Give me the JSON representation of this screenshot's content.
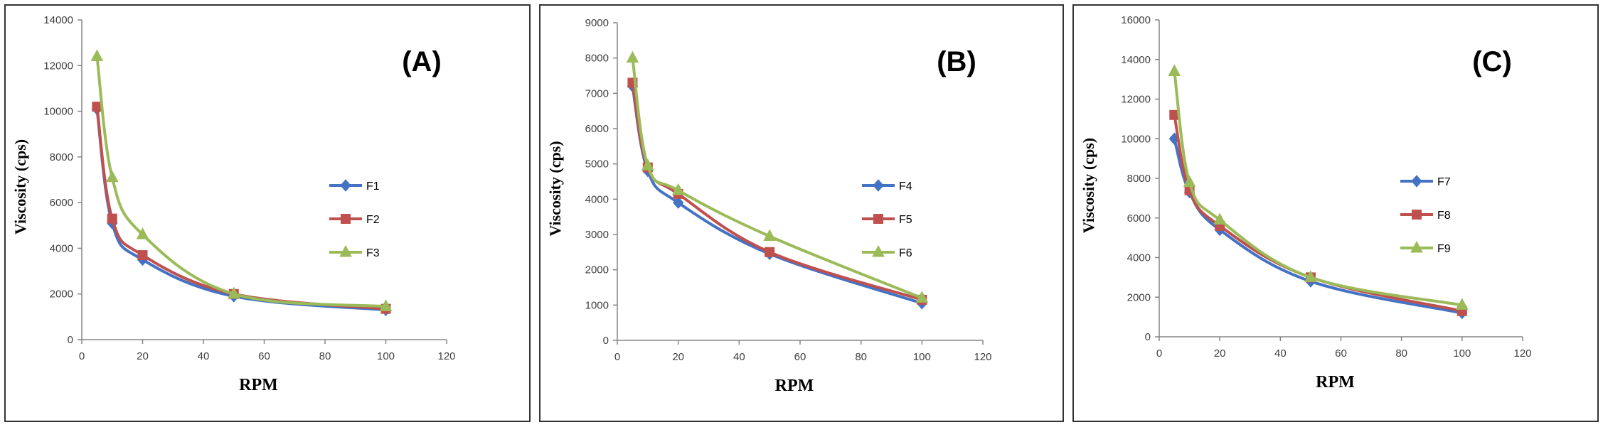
{
  "chart_data": [
    {
      "type": "line",
      "panel_label": "(A)",
      "xlabel": "RPM",
      "ylabel": "Viscosity (cps)",
      "x": [
        5,
        10,
        20,
        50,
        100
      ],
      "xlim": [
        0,
        120
      ],
      "ylim": [
        0,
        14000
      ],
      "xticks": [
        0,
        20,
        40,
        60,
        80,
        100,
        120
      ],
      "yticks": [
        0,
        2000,
        4000,
        6000,
        8000,
        10000,
        12000,
        14000
      ],
      "grid": false,
      "legend_position": "right",
      "series": [
        {
          "name": "F1",
          "color": "#4472C4",
          "marker": "diamond",
          "values": [
            10100,
            5100,
            3500,
            1900,
            1300
          ]
        },
        {
          "name": "F2",
          "color": "#C0504D",
          "marker": "square",
          "values": [
            10200,
            5300,
            3700,
            2000,
            1350
          ]
        },
        {
          "name": "F3",
          "color": "#9BBB59",
          "marker": "triangle",
          "values": [
            12400,
            7100,
            4600,
            2000,
            1450
          ]
        }
      ]
    },
    {
      "type": "line",
      "panel_label": "(B)",
      "xlabel": "RPM",
      "ylabel": "Viscosity (cps)",
      "x": [
        5,
        10,
        20,
        50,
        100
      ],
      "xlim": [
        0,
        120
      ],
      "ylim": [
        0,
        9000
      ],
      "xticks": [
        0,
        20,
        40,
        60,
        80,
        100,
        120
      ],
      "yticks": [
        0,
        1000,
        2000,
        3000,
        4000,
        5000,
        6000,
        7000,
        8000,
        9000
      ],
      "grid": false,
      "legend_position": "right",
      "series": [
        {
          "name": "F4",
          "color": "#4472C4",
          "marker": "diamond",
          "values": [
            7200,
            4800,
            3900,
            2450,
            1050
          ]
        },
        {
          "name": "F5",
          "color": "#C0504D",
          "marker": "square",
          "values": [
            7300,
            4900,
            4150,
            2500,
            1150
          ]
        },
        {
          "name": "F6",
          "color": "#9BBB59",
          "marker": "triangle",
          "values": [
            8000,
            4950,
            4250,
            2950,
            1200
          ]
        }
      ]
    },
    {
      "type": "line",
      "panel_label": "(C)",
      "xlabel": "RPM",
      "ylabel": "Viscosity (cps)",
      "x": [
        5,
        10,
        20,
        50,
        100
      ],
      "xlim": [
        0,
        120
      ],
      "ylim": [
        0,
        16000
      ],
      "xticks": [
        0,
        20,
        40,
        60,
        80,
        100,
        120
      ],
      "yticks": [
        0,
        2000,
        4000,
        6000,
        8000,
        10000,
        12000,
        14000,
        16000
      ],
      "grid": false,
      "legend_position": "right",
      "series": [
        {
          "name": "F7",
          "color": "#4472C4",
          "marker": "diamond",
          "values": [
            10000,
            7300,
            5400,
            2800,
            1200
          ]
        },
        {
          "name": "F8",
          "color": "#C0504D",
          "marker": "square",
          "values": [
            11200,
            7400,
            5600,
            3000,
            1300
          ]
        },
        {
          "name": "F9",
          "color": "#9BBB59",
          "marker": "triangle",
          "values": [
            13400,
            7800,
            5900,
            3000,
            1600
          ]
        }
      ]
    }
  ]
}
